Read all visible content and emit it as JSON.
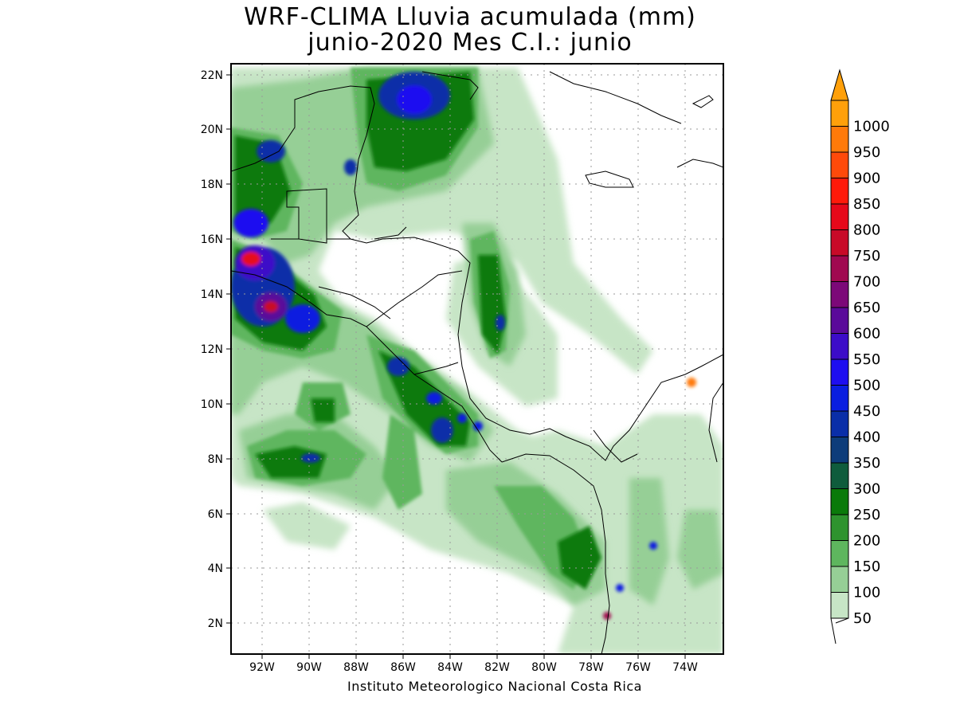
{
  "title_line1": "WRF-CLIMA Lluvia acumulada (mm)",
  "title_line2": "junio-2020 Mes C.I.: junio",
  "footer": "Instituto Meteorologico Nacional Costa Rica",
  "lat_labels": [
    "22N",
    "20N",
    "18N",
    "16N",
    "14N",
    "12N",
    "10N",
    "8N",
    "6N",
    "4N",
    "2N"
  ],
  "lon_labels": [
    "92W",
    "90W",
    "88W",
    "86W",
    "84W",
    "82W",
    "80W",
    "78W",
    "76W",
    "74W"
  ],
  "colorbar": {
    "levels": [
      "50",
      "100",
      "150",
      "200",
      "250",
      "300",
      "350",
      "400",
      "450",
      "500",
      "550",
      "600",
      "650",
      "700",
      "750",
      "800",
      "850",
      "900",
      "950",
      "1000"
    ],
    "colors": [
      "#c7e5c6",
      "#96cf96",
      "#5eb65e",
      "#2e932e",
      "#0a7a0a",
      "#0f5c3c",
      "#0d3c7a",
      "#0a2ea8",
      "#0a1ee0",
      "#1e0ef0",
      "#3c0cc8",
      "#5a0a9a",
      "#7c0878",
      "#a00850",
      "#c80a28",
      "#e6081a",
      "#ff1a0a",
      "#ff4a0a",
      "#ff7a0a",
      "#ffa00a"
    ],
    "extend_color": "#ffa00a"
  }
}
